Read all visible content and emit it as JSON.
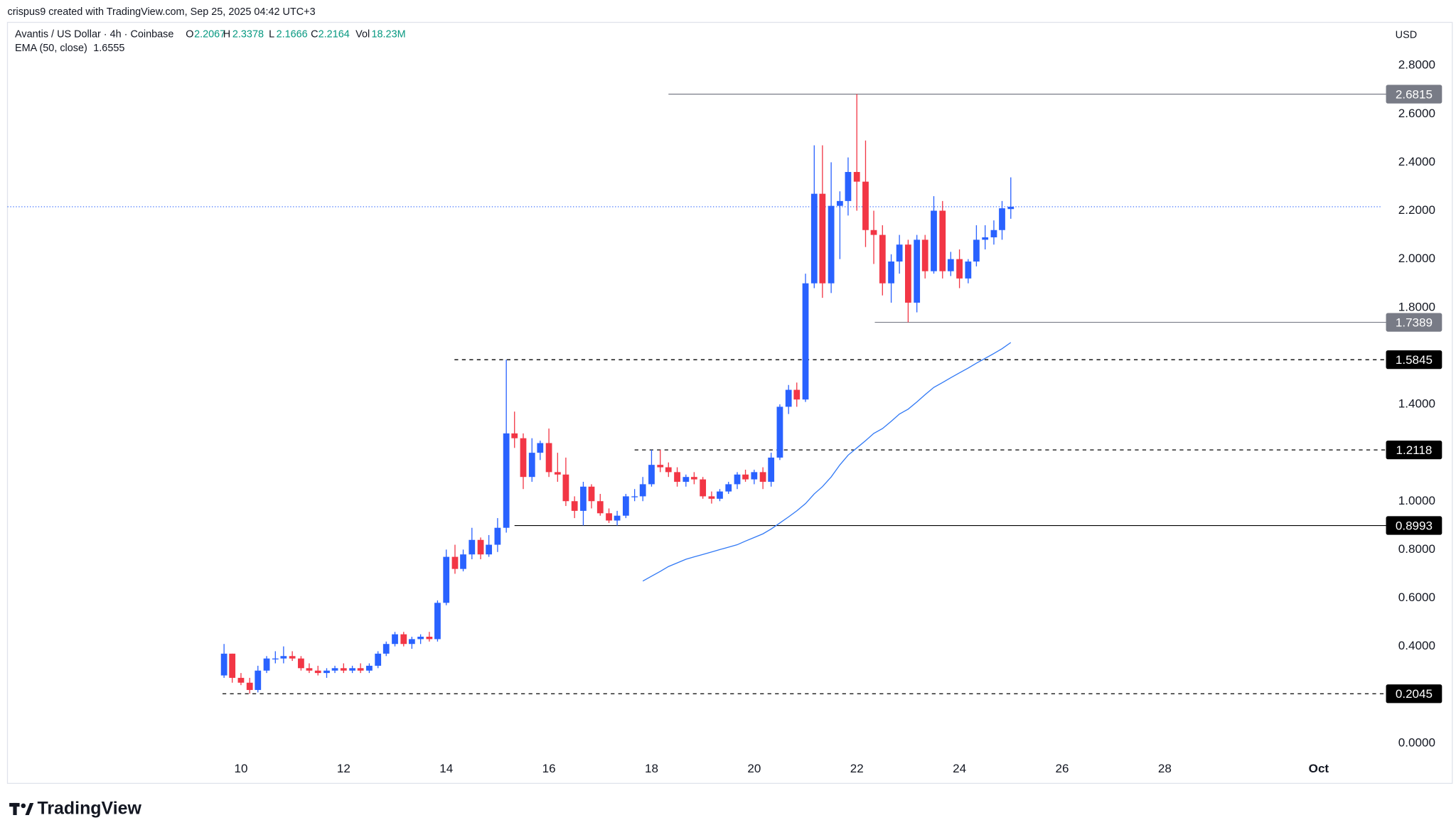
{
  "header": {
    "attribution": "crispus9 created with TradingView.com, Sep 25, 2025 04:42 UTC+3",
    "symbol": "Avantis / US Dollar · 4h · Coinbase",
    "ohlc_labels": [
      "O",
      "H",
      "L",
      "C",
      "Vol"
    ],
    "volume": "18.23M",
    "currency": "USD",
    "logo": "TradingView"
  },
  "chart_data": {
    "type": "candlestick",
    "up_color": "#2962ff",
    "down_color": "#f23645",
    "x": [
      9.67,
      9.83,
      10,
      10.17,
      10.33,
      10.5,
      10.67,
      10.83,
      11,
      11.17,
      11.33,
      11.5,
      11.67,
      11.83,
      12,
      12.17,
      12.33,
      12.5,
      12.67,
      12.83,
      13,
      13.17,
      13.33,
      13.5,
      13.67,
      13.83,
      14,
      14.17,
      14.33,
      14.5,
      14.67,
      14.83,
      15,
      15.17,
      15.33,
      15.5,
      15.67,
      15.83,
      16,
      16.17,
      16.33,
      16.5,
      16.67,
      16.83,
      17,
      17.17,
      17.33,
      17.5,
      17.67,
      17.83,
      18,
      18.17,
      18.33,
      18.5,
      18.67,
      18.83,
      19,
      19.17,
      19.33,
      19.5,
      19.67,
      19.83,
      20,
      20.17,
      20.33,
      20.5,
      20.67,
      20.83,
      21,
      21.17,
      21.33,
      21.5,
      21.67,
      21.83,
      22,
      22.17,
      22.33,
      22.5,
      22.67,
      22.83,
      23,
      23.17,
      23.33,
      23.5,
      23.67,
      23.83,
      24,
      24.17,
      24.33,
      24.5,
      24.67,
      24.83,
      25
    ],
    "open": [
      0.28,
      0.37,
      0.27,
      0.25,
      0.22,
      0.3,
      0.35,
      0.35,
      0.36,
      0.35,
      0.31,
      0.3,
      0.29,
      0.3,
      0.31,
      0.3,
      0.31,
      0.3,
      0.32,
      0.37,
      0.41,
      0.45,
      0.41,
      0.43,
      0.44,
      0.43,
      0.58,
      0.77,
      0.72,
      0.78,
      0.84,
      0.78,
      0.82,
      0.89,
      1.28,
      1.26,
      1.1,
      1.2,
      1.24,
      1.12,
      1.11,
      1.0,
      0.96,
      1.06,
      1.0,
      0.95,
      0.92,
      0.94,
      1.02,
      1.02,
      1.07,
      1.15,
      1.14,
      1.12,
      1.08,
      1.1,
      1.09,
      1.02,
      1.01,
      1.04,
      1.07,
      1.11,
      1.09,
      1.12,
      1.08,
      1.18,
      1.39,
      1.46,
      1.42,
      1.9,
      2.27,
      1.9,
      2.22,
      2.24,
      2.36,
      2.32,
      2.12,
      2.1,
      1.9,
      1.99,
      2.06,
      1.82,
      2.08,
      1.95,
      2.2,
      1.95,
      2.0,
      1.92,
      1.99,
      2.08,
      2.09,
      2.12,
      2.2067
    ],
    "high": [
      0.41,
      0.37,
      0.29,
      0.27,
      0.32,
      0.36,
      0.38,
      0.4,
      0.38,
      0.36,
      0.33,
      0.32,
      0.31,
      0.32,
      0.33,
      0.32,
      0.33,
      0.33,
      0.38,
      0.42,
      0.46,
      0.46,
      0.44,
      0.45,
      0.46,
      0.59,
      0.8,
      0.82,
      0.8,
      0.89,
      0.85,
      0.86,
      0.93,
      1.5845,
      1.37,
      1.28,
      1.26,
      1.25,
      1.3,
      1.2,
      1.18,
      1.02,
      1.08,
      1.07,
      1.03,
      0.97,
      0.96,
      1.03,
      1.05,
      1.1,
      1.2118,
      1.2118,
      1.16,
      1.14,
      1.11,
      1.12,
      1.1,
      1.04,
      1.05,
      1.08,
      1.12,
      1.13,
      1.13,
      1.14,
      1.2,
      1.4,
      1.48,
      1.49,
      1.94,
      2.47,
      2.47,
      2.4,
      2.28,
      2.42,
      2.6815,
      2.49,
      2.2,
      2.14,
      2.02,
      2.1,
      2.08,
      2.1,
      2.1,
      2.26,
      2.24,
      2.03,
      2.04,
      2.0,
      2.14,
      2.14,
      2.16,
      2.24,
      2.3378
    ],
    "low": [
      0.27,
      0.25,
      0.24,
      0.2045,
      0.21,
      0.29,
      0.33,
      0.33,
      0.34,
      0.3,
      0.29,
      0.28,
      0.27,
      0.29,
      0.29,
      0.29,
      0.29,
      0.29,
      0.31,
      0.36,
      0.4,
      0.4,
      0.39,
      0.41,
      0.42,
      0.42,
      0.57,
      0.7,
      0.71,
      0.76,
      0.76,
      0.77,
      0.79,
      0.87,
      1.22,
      1.05,
      1.08,
      1.17,
      1.1,
      1.08,
      0.98,
      0.93,
      0.8993,
      0.97,
      0.94,
      0.91,
      0.8993,
      0.93,
      1.0,
      1.0,
      1.06,
      1.12,
      1.1,
      1.06,
      1.06,
      1.07,
      1.01,
      0.99,
      1.0,
      1.03,
      1.05,
      1.08,
      1.07,
      1.05,
      1.06,
      1.17,
      1.36,
      1.39,
      1.41,
      1.88,
      1.84,
      1.86,
      2.0,
      2.18,
      2.2,
      2.05,
      1.98,
      1.85,
      1.82,
      1.94,
      1.7389,
      1.78,
      1.92,
      1.94,
      1.92,
      1.93,
      1.88,
      1.9,
      1.97,
      2.04,
      2.06,
      2.08,
      2.1666
    ],
    "close": [
      0.37,
      0.27,
      0.25,
      0.22,
      0.3,
      0.35,
      0.35,
      0.36,
      0.35,
      0.31,
      0.3,
      0.29,
      0.3,
      0.31,
      0.3,
      0.31,
      0.3,
      0.32,
      0.37,
      0.41,
      0.45,
      0.41,
      0.43,
      0.44,
      0.43,
      0.58,
      0.77,
      0.72,
      0.78,
      0.84,
      0.78,
      0.82,
      0.89,
      1.28,
      1.26,
      1.1,
      1.2,
      1.24,
      1.12,
      1.11,
      1.0,
      0.96,
      1.06,
      1.0,
      0.95,
      0.92,
      0.94,
      1.02,
      1.02,
      1.07,
      1.15,
      1.14,
      1.12,
      1.08,
      1.1,
      1.09,
      1.02,
      1.01,
      1.04,
      1.07,
      1.11,
      1.09,
      1.12,
      1.08,
      1.18,
      1.39,
      1.46,
      1.42,
      1.9,
      2.27,
      1.9,
      2.22,
      2.24,
      2.36,
      2.32,
      2.12,
      2.1,
      1.9,
      1.99,
      2.06,
      1.82,
      2.08,
      1.95,
      2.2,
      1.95,
      2.0,
      1.92,
      1.99,
      2.08,
      2.09,
      2.12,
      2.21,
      2.2164
    ],
    "ema": {
      "name": "EMA (50, close)",
      "color": "#3179f5",
      "values": [
        null,
        null,
        null,
        null,
        null,
        null,
        null,
        null,
        null,
        null,
        null,
        null,
        null,
        null,
        null,
        null,
        null,
        null,
        null,
        null,
        null,
        null,
        null,
        null,
        null,
        null,
        null,
        null,
        null,
        null,
        null,
        null,
        null,
        null,
        null,
        null,
        null,
        null,
        null,
        null,
        null,
        null,
        null,
        null,
        null,
        null,
        null,
        null,
        null,
        0.67,
        0.69,
        0.71,
        0.73,
        0.745,
        0.76,
        0.77,
        0.78,
        0.79,
        0.8,
        0.81,
        0.82,
        0.835,
        0.85,
        0.865,
        0.885,
        0.91,
        0.935,
        0.96,
        0.99,
        1.03,
        1.06,
        1.1,
        1.15,
        1.19,
        1.22,
        1.25,
        1.28,
        1.3,
        1.33,
        1.36,
        1.38,
        1.41,
        1.44,
        1.47,
        1.49,
        1.51,
        1.53,
        1.55,
        1.57,
        1.59,
        1.61,
        1.63,
        1.6555
      ]
    },
    "price_line_color": "#2962ff",
    "levels": [
      {
        "value": 2.6815,
        "x0": 18.33,
        "color": "#787b86",
        "dashed": false
      },
      {
        "value": 1.7389,
        "x0": 22.35,
        "color": "#787b86",
        "dashed": false
      },
      {
        "value": 1.5845,
        "x0": 14.16,
        "color": "#000000",
        "dashed": true
      },
      {
        "value": 1.2118,
        "x0": 17.67,
        "color": "#000000",
        "dashed": true
      },
      {
        "value": 0.8993,
        "x0": 15.33,
        "color": "#000000",
        "dashed": false
      },
      {
        "value": 0.2045,
        "x0": 9.64,
        "color": "#000000",
        "dashed": true
      }
    ],
    "xlim": [
      5.45,
      32.22
    ],
    "xticks": [
      10,
      12,
      14,
      16,
      18,
      20,
      22,
      24,
      26,
      28,
      {
        "value": 31,
        "label": "Oct"
      }
    ],
    "ylim": [
      -0.058,
      2.978
    ],
    "yticks": [
      {
        "value": 0,
        "label": "0.0000"
      },
      {
        "value": 0.4,
        "label": "0.4000"
      },
      {
        "value": 0.6,
        "label": "0.6000"
      },
      {
        "value": 0.8,
        "label": "0.8000"
      },
      {
        "value": 1.0,
        "label": "1.0000"
      },
      {
        "value": 1.4,
        "label": "1.4000"
      },
      {
        "value": 1.8,
        "label": "1.8000"
      },
      {
        "value": 2.0,
        "label": "2.0000"
      },
      {
        "value": 2.2,
        "label": "2.2000"
      },
      {
        "value": 2.4,
        "label": "2.4000"
      },
      {
        "value": 2.6,
        "label": "2.6000"
      },
      {
        "value": 2.8,
        "label": "2.8000"
      }
    ],
    "grid": false
  }
}
